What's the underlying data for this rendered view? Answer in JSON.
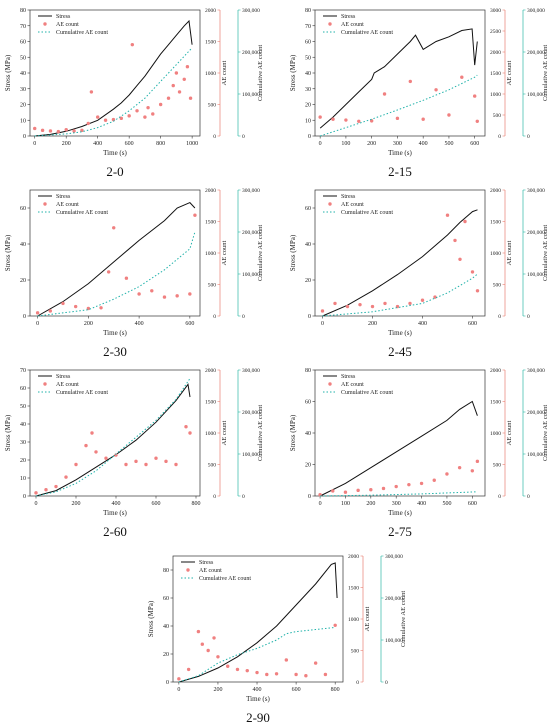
{
  "legend_labels": {
    "stress": "Stress",
    "ae": "AE count",
    "cum": "Cumulative AE count"
  },
  "axis_labels": {
    "x": "Time (s)",
    "y1": "Stress (MPa)",
    "y2": "AE count",
    "y3": "Cumulative AE count"
  },
  "colors": {
    "stress": "#111111",
    "ae": "#f08080",
    "cum": "#20b2aa",
    "axis_ae": "#e98073",
    "axis_cum": "#2fb7a5"
  },
  "chart_data": [
    {
      "type": "line",
      "label": "2-0",
      "x_ticks": [
        0,
        200,
        400,
        600,
        800,
        1000
      ],
      "xlim": [
        -30,
        1050
      ],
      "y1_ticks": [
        0,
        10,
        20,
        30,
        40,
        50,
        60,
        70,
        80
      ],
      "y1lim": [
        0,
        80
      ],
      "y2_ticks": [
        0,
        500,
        1000,
        1500,
        2000
      ],
      "y2lim": [
        0,
        2000
      ],
      "y3_ticks": [
        0,
        100000,
        200000,
        300000
      ],
      "y3_tick_labels": [
        "0",
        "100,000",
        "200,000",
        "300,000"
      ],
      "y3lim": [
        0,
        300000
      ],
      "series": [
        {
          "name": "Stress",
          "axis": "y1",
          "style": "solid",
          "x": [
            0,
            100,
            200,
            300,
            400,
            500,
            550,
            600,
            650,
            700,
            750,
            800,
            850,
            900,
            950,
            980,
            1000
          ],
          "y": [
            0,
            1,
            3,
            6,
            10,
            17,
            21,
            26,
            32,
            38,
            45,
            52,
            58,
            64,
            70,
            73,
            58
          ]
        },
        {
          "name": "AE count",
          "axis": "y2",
          "style": "scatter",
          "x": [
            0,
            50,
            100,
            150,
            200,
            250,
            300,
            340,
            360,
            400,
            450,
            500,
            550,
            600,
            620,
            650,
            700,
            720,
            750,
            800,
            850,
            880,
            900,
            920,
            950,
            970,
            990
          ],
          "y": [
            120,
            90,
            80,
            70,
            100,
            80,
            90,
            200,
            700,
            300,
            250,
            260,
            280,
            320,
            1450,
            400,
            300,
            450,
            350,
            500,
            600,
            800,
            1000,
            700,
            900,
            1100,
            600
          ]
        },
        {
          "name": "Cumulative AE count",
          "axis": "y3",
          "style": "dotted",
          "x": [
            0,
            200,
            300,
            400,
            500,
            600,
            700,
            800,
            900,
            1000
          ],
          "y": [
            0,
            5000,
            10000,
            20000,
            35000,
            60000,
            90000,
            130000,
            170000,
            210000
          ]
        }
      ]
    },
    {
      "type": "line",
      "label": "2-15",
      "x_ticks": [
        0,
        100,
        200,
        300,
        400,
        500,
        600
      ],
      "xlim": [
        -20,
        640
      ],
      "y1_ticks": [
        0,
        10,
        20,
        30,
        40,
        50,
        60,
        70,
        80
      ],
      "y1lim": [
        0,
        80
      ],
      "y2_ticks": [
        0,
        500,
        1000,
        1500,
        2000,
        2500,
        3000
      ],
      "y2lim": [
        0,
        3000
      ],
      "y3_ticks": [
        0,
        100000,
        200000,
        300000
      ],
      "y3_tick_labels": [
        "0",
        "100,000",
        "200,000",
        "300,000"
      ],
      "y3lim": [
        0,
        300000
      ],
      "series": [
        {
          "name": "Stress",
          "axis": "y1",
          "style": "solid",
          "x": [
            0,
            50,
            100,
            150,
            200,
            210,
            250,
            300,
            350,
            370,
            400,
            450,
            500,
            550,
            590,
            600,
            610
          ],
          "y": [
            5,
            12,
            20,
            28,
            36,
            40,
            44,
            52,
            60,
            64,
            55,
            60,
            63,
            67,
            68,
            45,
            60
          ]
        },
        {
          "name": "AE count",
          "axis": "y2",
          "style": "scatter",
          "x": [
            0,
            50,
            100,
            150,
            200,
            250,
            300,
            350,
            400,
            450,
            500,
            550,
            600,
            610
          ],
          "y": [
            450,
            400,
            380,
            350,
            360,
            1000,
            420,
            1300,
            400,
            1100,
            500,
            1400,
            950,
            350
          ]
        },
        {
          "name": "Cumulative AE count",
          "axis": "y3",
          "style": "dotted",
          "x": [
            0,
            100,
            200,
            300,
            400,
            500,
            600,
            610
          ],
          "y": [
            0,
            20000,
            40000,
            62000,
            85000,
            110000,
            140000,
            145000
          ]
        }
      ]
    },
    {
      "type": "line",
      "label": "2-30",
      "x_ticks": [
        0,
        200,
        400,
        600
      ],
      "xlim": [
        -30,
        640
      ],
      "y1_ticks": [
        0,
        20,
        40,
        60
      ],
      "y1lim": [
        0,
        70
      ],
      "y2_ticks": [
        0,
        500,
        1000,
        1500,
        2000
      ],
      "y2lim": [
        0,
        2000
      ],
      "y3_ticks": [
        0,
        100000,
        200000,
        300000
      ],
      "y3_tick_labels": [
        "0",
        "100,000",
        "200,000",
        "300,000"
      ],
      "y3lim": [
        0,
        300000
      ],
      "series": [
        {
          "name": "Stress",
          "axis": "y1",
          "style": "solid",
          "x": [
            0,
            100,
            200,
            300,
            400,
            500,
            550,
            600,
            620
          ],
          "y": [
            0,
            8,
            18,
            30,
            42,
            53,
            60,
            63,
            60
          ]
        },
        {
          "name": "AE count",
          "axis": "y2",
          "style": "scatter",
          "x": [
            0,
            50,
            100,
            150,
            200,
            250,
            280,
            300,
            350,
            400,
            450,
            500,
            550,
            600,
            620
          ],
          "y": [
            50,
            80,
            200,
            150,
            120,
            130,
            700,
            1400,
            600,
            350,
            400,
            300,
            320,
            350,
            1600
          ]
        },
        {
          "name": "Cumulative AE count",
          "axis": "y3",
          "style": "dotted",
          "x": [
            0,
            200,
            300,
            400,
            500,
            600,
            620
          ],
          "y": [
            0,
            15000,
            40000,
            70000,
            110000,
            160000,
            200000
          ]
        }
      ]
    },
    {
      "type": "line",
      "label": "2-45",
      "x_ticks": [
        0,
        200,
        400,
        600
      ],
      "xlim": [
        -30,
        650
      ],
      "y1_ticks": [
        0,
        20,
        40,
        60
      ],
      "y1lim": [
        0,
        70
      ],
      "y2_ticks": [
        0,
        500,
        1000,
        1500,
        2000
      ],
      "y2lim": [
        0,
        2000
      ],
      "y3_ticks": [
        0,
        100000,
        200000,
        300000
      ],
      "y3_tick_labels": [
        "0",
        "100,000",
        "200,000",
        "300,000"
      ],
      "y3lim": [
        0,
        300000
      ],
      "series": [
        {
          "name": "Stress",
          "axis": "y1",
          "style": "solid",
          "x": [
            0,
            100,
            200,
            300,
            400,
            500,
            550,
            600,
            620
          ],
          "y": [
            0,
            6,
            14,
            23,
            33,
            45,
            52,
            58,
            59
          ]
        },
        {
          "name": "AE count",
          "axis": "y2",
          "style": "scatter",
          "x": [
            0,
            50,
            100,
            150,
            200,
            250,
            300,
            350,
            400,
            450,
            500,
            530,
            550,
            570,
            600,
            620
          ],
          "y": [
            80,
            200,
            150,
            180,
            150,
            200,
            150,
            200,
            250,
            300,
            1600,
            1200,
            900,
            1500,
            700,
            400
          ]
        },
        {
          "name": "Cumulative AE count",
          "axis": "y3",
          "style": "dotted",
          "x": [
            0,
            200,
            400,
            500,
            600,
            620
          ],
          "y": [
            0,
            10000,
            30000,
            55000,
            90000,
            100000
          ]
        }
      ]
    },
    {
      "type": "line",
      "label": "2-60",
      "x_ticks": [
        0,
        200,
        400,
        600,
        800
      ],
      "xlim": [
        -30,
        820
      ],
      "y1_ticks": [
        0,
        10,
        20,
        30,
        40,
        50,
        60,
        70
      ],
      "y1lim": [
        0,
        70
      ],
      "y2_ticks": [
        0,
        500,
        1000,
        1500,
        2000
      ],
      "y2lim": [
        0,
        2000
      ],
      "y3_ticks": [
        0,
        100000,
        200000,
        300000
      ],
      "y3_tick_labels": [
        "0",
        "100,000",
        "200,000",
        "300,000"
      ],
      "y3lim": [
        0,
        300000
      ],
      "series": [
        {
          "name": "Stress",
          "axis": "y1",
          "style": "solid",
          "x": [
            0,
            100,
            200,
            300,
            400,
            500,
            600,
            700,
            760,
            770
          ],
          "y": [
            0,
            3,
            9,
            16,
            23,
            31,
            41,
            53,
            62,
            55
          ]
        },
        {
          "name": "AE count",
          "axis": "y2",
          "style": "scatter",
          "x": [
            0,
            50,
            100,
            150,
            200,
            250,
            280,
            300,
            350,
            400,
            450,
            500,
            550,
            600,
            650,
            700,
            750,
            770
          ],
          "y": [
            50,
            100,
            150,
            300,
            500,
            800,
            1000,
            700,
            600,
            650,
            500,
            550,
            500,
            600,
            550,
            500,
            1100,
            1000
          ]
        },
        {
          "name": "Cumulative AE count",
          "axis": "y3",
          "style": "dotted",
          "x": [
            0,
            100,
            200,
            300,
            400,
            500,
            600,
            700,
            770
          ],
          "y": [
            0,
            10000,
            30000,
            60000,
            100000,
            140000,
            180000,
            230000,
            280000
          ]
        }
      ]
    },
    {
      "type": "line",
      "label": "2-75",
      "x_ticks": [
        0,
        100,
        200,
        300,
        400,
        500,
        600
      ],
      "xlim": [
        -20,
        650
      ],
      "y1_ticks": [
        0,
        20,
        40,
        60,
        80
      ],
      "y1lim": [
        0,
        80
      ],
      "y2_ticks": [
        0,
        500,
        1000,
        1500,
        2000
      ],
      "y2lim": [
        0,
        2000
      ],
      "y3_ticks": [
        0,
        100000,
        200000,
        300000
      ],
      "y3_tick_labels": [
        "0",
        "100,000",
        "200,000",
        "300,000"
      ],
      "y3lim": [
        0,
        300000
      ],
      "series": [
        {
          "name": "Stress",
          "axis": "y1",
          "style": "solid",
          "x": [
            0,
            100,
            200,
            300,
            400,
            500,
            550,
            600,
            620
          ],
          "y": [
            0,
            8,
            18,
            28,
            38,
            48,
            55,
            60,
            51
          ]
        },
        {
          "name": "AE count",
          "axis": "y2",
          "style": "scatter",
          "x": [
            0,
            50,
            100,
            150,
            200,
            250,
            300,
            350,
            400,
            450,
            500,
            550,
            600,
            620
          ],
          "y": [
            20,
            80,
            60,
            90,
            100,
            120,
            150,
            180,
            200,
            250,
            350,
            450,
            400,
            550
          ]
        },
        {
          "name": "Cumulative AE count",
          "axis": "y3",
          "style": "dotted",
          "x": [
            0,
            200,
            400,
            620
          ],
          "y": [
            0,
            2000,
            5000,
            10000
          ]
        }
      ]
    },
    {
      "type": "line",
      "label": "2-90",
      "x_ticks": [
        0,
        200,
        400,
        600,
        800
      ],
      "xlim": [
        -30,
        840
      ],
      "y1_ticks": [
        0,
        20,
        40,
        60,
        80
      ],
      "y1lim": [
        0,
        90
      ],
      "y2_ticks": [
        0,
        500,
        1000,
        1500,
        2000
      ],
      "y2lim": [
        0,
        2000
      ],
      "y3_ticks": [
        0,
        100000,
        200000,
        300000
      ],
      "y3_tick_labels": [
        "0",
        "100,000",
        "200,000",
        "300,000"
      ],
      "y3lim": [
        0,
        300000
      ],
      "series": [
        {
          "name": "Stress",
          "axis": "y1",
          "style": "solid",
          "x": [
            0,
            100,
            200,
            300,
            400,
            500,
            600,
            700,
            780,
            800,
            810
          ],
          "y": [
            0,
            4,
            10,
            18,
            28,
            40,
            55,
            70,
            84,
            85,
            60
          ]
        },
        {
          "name": "AE count",
          "axis": "y2",
          "style": "scatter",
          "x": [
            0,
            50,
            100,
            120,
            150,
            180,
            200,
            250,
            300,
            350,
            400,
            450,
            500,
            550,
            600,
            650,
            700,
            750,
            800
          ],
          "y": [
            50,
            200,
            800,
            600,
            500,
            700,
            400,
            250,
            200,
            180,
            150,
            120,
            130,
            350,
            120,
            100,
            300,
            120,
            900
          ]
        },
        {
          "name": "Cumulative AE count",
          "axis": "y3",
          "style": "dotted",
          "x": [
            0,
            100,
            200,
            300,
            400,
            500,
            550,
            600,
            700,
            800
          ],
          "y": [
            0,
            15000,
            45000,
            65000,
            80000,
            100000,
            115000,
            120000,
            125000,
            130000
          ]
        }
      ]
    }
  ]
}
